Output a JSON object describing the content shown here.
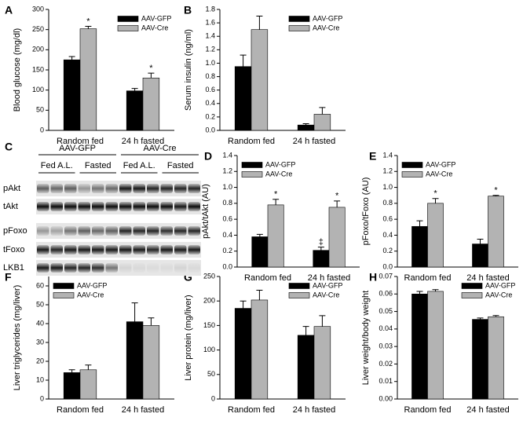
{
  "chart_data": [
    {
      "type": "bar",
      "panel": "A",
      "ylabel": "Blood glucose (mg/dl)",
      "categories": [
        "Random fed",
        "24 h fasted"
      ],
      "ylim": [
        0,
        300
      ],
      "yticks": [
        0,
        50,
        100,
        150,
        200,
        250,
        300
      ],
      "legend": "upper right",
      "series": [
        {
          "name": "AAV-GFP",
          "color": "#000000",
          "values": [
            175,
            98
          ],
          "errors": [
            8,
            6
          ],
          "annotations": [
            null,
            null
          ]
        },
        {
          "name": "AAV-Cre",
          "color": "#b3b3b3",
          "values": [
            252,
            130
          ],
          "errors": [
            6,
            12
          ],
          "annotations": [
            "*",
            "*"
          ]
        }
      ]
    },
    {
      "type": "bar",
      "panel": "B",
      "ylabel": "Serum insulin (ng/ml)",
      "categories": [
        "Random fed",
        "24 h fasted"
      ],
      "ylim": [
        0,
        1.8
      ],
      "yticks": [
        {
          "value": 0,
          "label": "0.0"
        },
        0.2,
        0.4,
        0.6,
        0.8,
        {
          "value": 1,
          "label": "1.0"
        },
        1.2,
        1.4,
        1.6,
        1.8
      ],
      "legend": "upper right",
      "series": [
        {
          "name": "AAV-GFP",
          "color": "#000000",
          "values": [
            0.95,
            0.08
          ],
          "errors": [
            0.17,
            0.02
          ]
        },
        {
          "name": "AAV-Cre",
          "color": "#b3b3b3",
          "values": [
            1.5,
            0.24
          ],
          "errors": [
            0.2,
            0.1
          ]
        }
      ]
    },
    {
      "type": "bar",
      "panel": "D",
      "ylabel": "pAkt/tAkt (AU)",
      "categories": [
        "Random fed",
        "24 h fasted"
      ],
      "ylim": [
        0,
        1.4
      ],
      "yticks": [
        {
          "value": 0,
          "label": "0.0"
        },
        0.2,
        0.4,
        0.6,
        0.8,
        {
          "value": 1,
          "label": "1.0"
        },
        1.2,
        1.4
      ],
      "legend": "upper left",
      "series": [
        {
          "name": "AAV-GFP",
          "color": "#000000",
          "values": [
            0.38,
            0.21
          ],
          "errors": [
            0.03,
            0.04
          ],
          "annotations": [
            null,
            "‡"
          ]
        },
        {
          "name": "AAV-Cre",
          "color": "#b3b3b3",
          "values": [
            0.78,
            0.75
          ],
          "errors": [
            0.07,
            0.08
          ],
          "annotations": [
            "*",
            "*"
          ]
        }
      ]
    },
    {
      "type": "bar",
      "panel": "E",
      "ylabel": "pFoxo/tFoxo (AU)",
      "categories": [
        "Random fed",
        "24 h fasted"
      ],
      "ylim": [
        0,
        1.4
      ],
      "yticks": [
        {
          "value": 0,
          "label": "0.0"
        },
        0.2,
        0.4,
        0.6,
        0.8,
        {
          "value": 1,
          "label": "1.0"
        },
        1.2,
        1.4
      ],
      "legend": "upper left",
      "series": [
        {
          "name": "AAV-GFP",
          "color": "#000000",
          "values": [
            0.51,
            0.29
          ],
          "errors": [
            0.07,
            0.06
          ],
          "annotations": [
            null,
            null
          ]
        },
        {
          "name": "AAV-Cre",
          "color": "#b3b3b3",
          "values": [
            0.8,
            0.89
          ],
          "errors": [
            0.06,
            0.01
          ],
          "annotations": [
            "*",
            "*"
          ]
        }
      ]
    },
    {
      "type": "bar",
      "panel": "F",
      "ylabel": "Liver triglycerides (mg/liver)",
      "categories": [
        "Random fed",
        "24 h fasted"
      ],
      "ylim": [
        0,
        65
      ],
      "yticks": [
        0,
        10,
        20,
        30,
        40,
        50,
        60
      ],
      "legend": "upper left",
      "series": [
        {
          "name": "AAV-GFP",
          "color": "#000000",
          "values": [
            14,
            41
          ],
          "errors": [
            1.5,
            10
          ]
        },
        {
          "name": "AAV-Cre",
          "color": "#b3b3b3",
          "values": [
            15.5,
            39
          ],
          "errors": [
            2.5,
            4
          ]
        }
      ]
    },
    {
      "type": "bar",
      "panel": "G",
      "ylabel": "Liver protein (mg/liver)",
      "categories": [
        "Random fed",
        "24 h fasted"
      ],
      "ylim": [
        0,
        250
      ],
      "yticks": [
        0,
        50,
        100,
        150,
        200,
        250
      ],
      "legend": "upper right",
      "series": [
        {
          "name": "AAV-GFP",
          "color": "#000000",
          "values": [
            185,
            130
          ],
          "errors": [
            15,
            18
          ]
        },
        {
          "name": "AAV-Cre",
          "color": "#b3b3b3",
          "values": [
            202,
            148
          ],
          "errors": [
            20,
            22
          ]
        }
      ]
    },
    {
      "type": "bar",
      "panel": "H",
      "ylabel": "Liver weight/body weight",
      "categories": [
        "Random fed",
        "24 h fasted"
      ],
      "ylim": [
        0,
        0.07
      ],
      "yticks": [
        {
          "value": 0,
          "label": "0.00"
        },
        0.01,
        0.02,
        0.03,
        0.04,
        0.05,
        0.06,
        0.07
      ],
      "legend": "upper right",
      "series": [
        {
          "name": "AAV-GFP",
          "color": "#000000",
          "values": [
            0.06,
            0.0455
          ],
          "errors": [
            0.0015,
            0.0008
          ]
        },
        {
          "name": "AAV-Cre",
          "color": "#b3b3b3",
          "values": [
            0.0615,
            0.047
          ],
          "errors": [
            0.001,
            0.0007
          ]
        }
      ]
    }
  ],
  "blot": {
    "panel": "C",
    "groups": [
      "AAV-GFP",
      "AAV-Cre"
    ],
    "conditions": [
      "Fed A.L.",
      "Fasted",
      "Fed A.L.",
      "Fasted"
    ],
    "rows": [
      "pAkt",
      "tAkt",
      "pFoxo",
      "tFoxo",
      "LKB1"
    ]
  }
}
